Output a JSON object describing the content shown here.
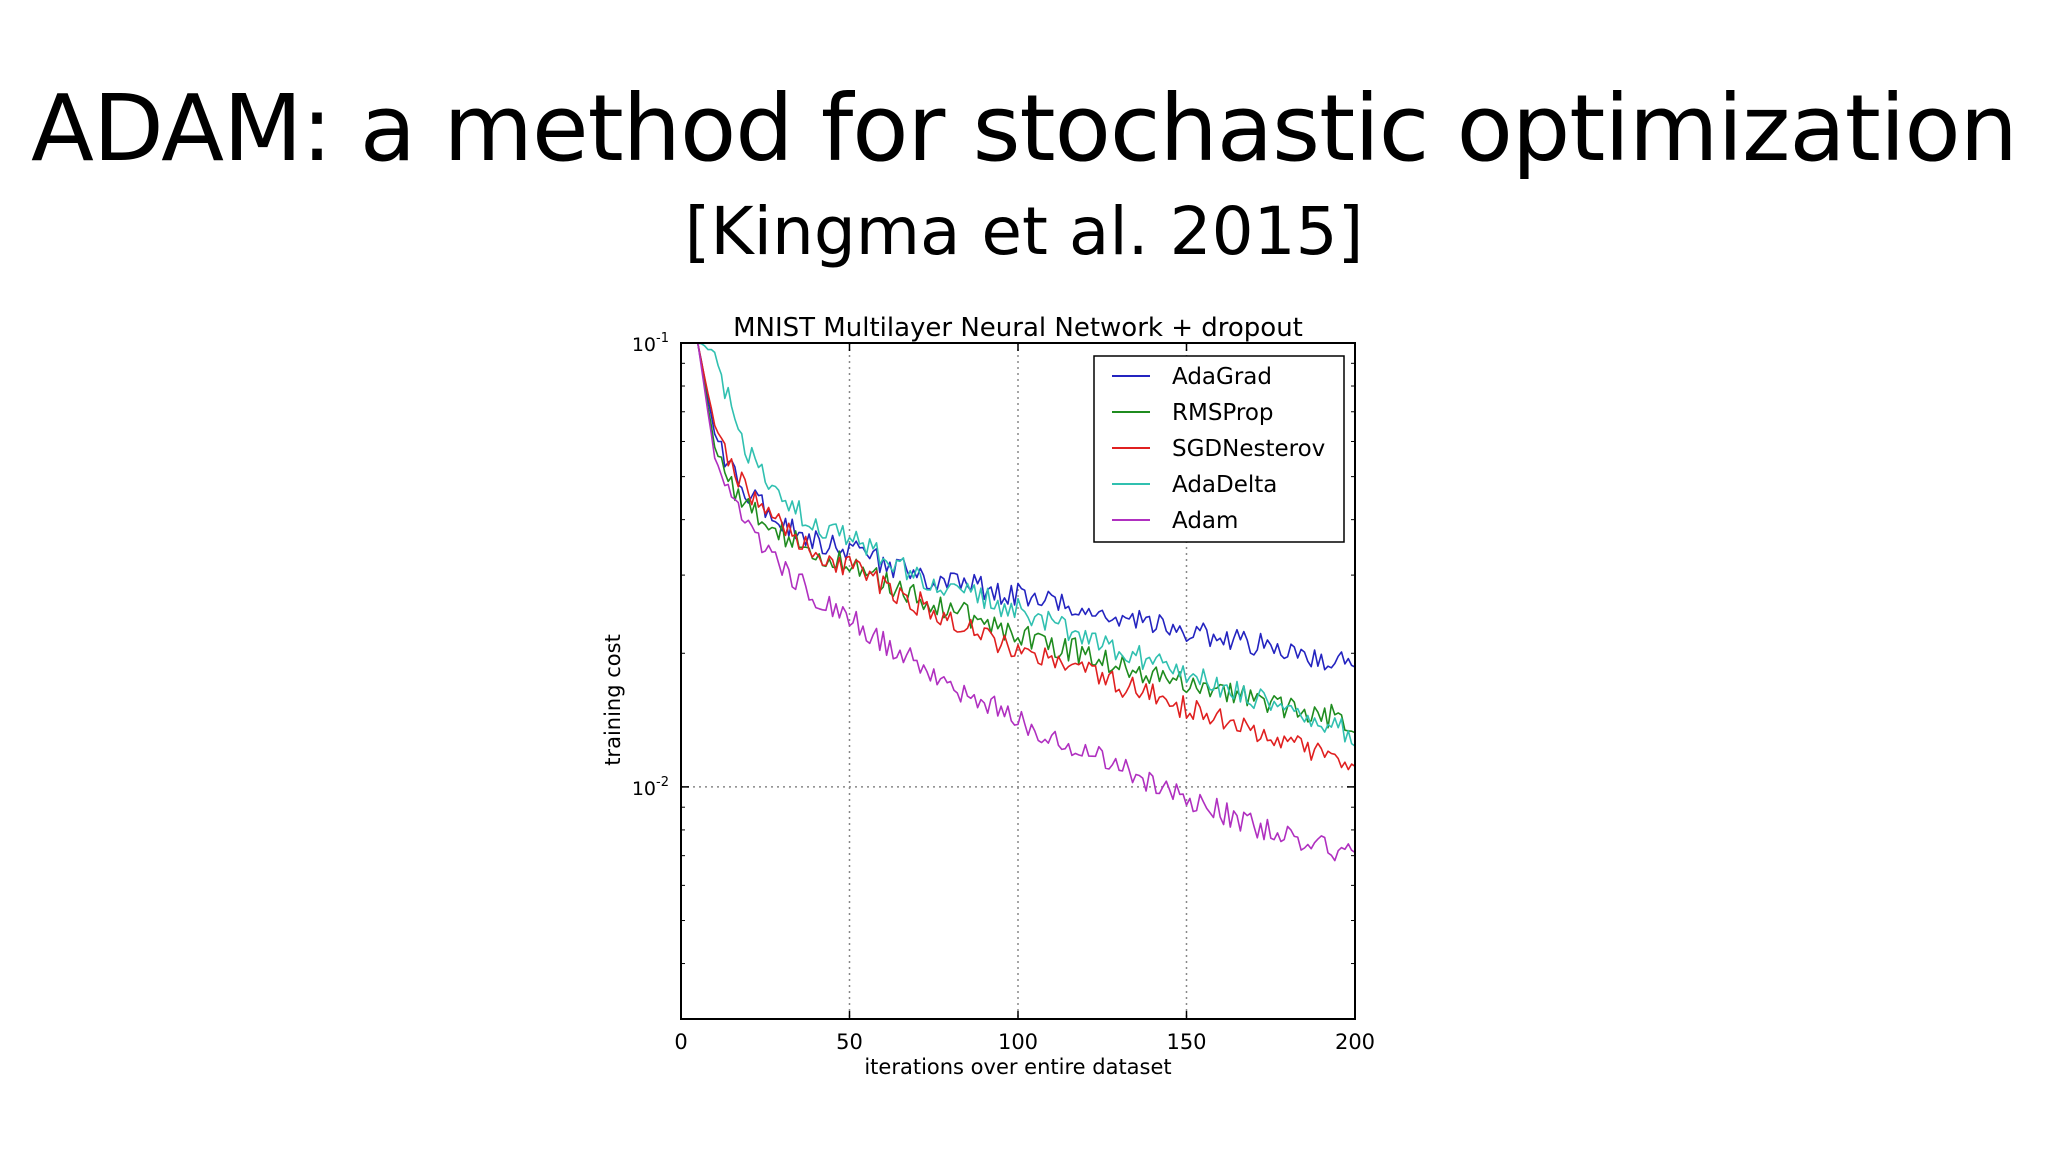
{
  "slide": {
    "title": "ADAM: a method for stochastic optimization",
    "subtitle": "[Kingma et al. 2015]"
  },
  "chart_data": {
    "type": "line",
    "title": "MNIST Multilayer Neural Network + dropout",
    "xlabel": "iterations over entire dataset",
    "ylabel": "training cost",
    "xlim": [
      0,
      200
    ],
    "ylim": [
      0.003,
      0.1
    ],
    "yscale": "log",
    "x_ticks": [
      0,
      50,
      100,
      150,
      200
    ],
    "y_ticks": [
      {
        "value": 0.1,
        "base": "10",
        "exp": "-1"
      },
      {
        "value": 0.01,
        "base": "10",
        "exp": "-2"
      }
    ],
    "grid": true,
    "legend_position": "top-right",
    "series": [
      {
        "name": "AdaGrad",
        "color": "#2424c0",
        "points": [
          [
            5,
            0.1
          ],
          [
            10,
            0.062
          ],
          [
            15,
            0.052
          ],
          [
            20,
            0.046
          ],
          [
            25,
            0.042
          ],
          [
            30,
            0.039
          ],
          [
            40,
            0.036
          ],
          [
            50,
            0.034
          ],
          [
            60,
            0.032
          ],
          [
            70,
            0.03
          ],
          [
            80,
            0.029
          ],
          [
            90,
            0.028
          ],
          [
            100,
            0.027
          ],
          [
            110,
            0.026
          ],
          [
            120,
            0.025
          ],
          [
            130,
            0.024
          ],
          [
            140,
            0.0232
          ],
          [
            150,
            0.0225
          ],
          [
            160,
            0.0215
          ],
          [
            170,
            0.021
          ],
          [
            180,
            0.02
          ],
          [
            190,
            0.0195
          ],
          [
            200,
            0.0185
          ]
        ]
      },
      {
        "name": "RMSProp",
        "color": "#1f8c1f",
        "points": [
          [
            5,
            0.1
          ],
          [
            10,
            0.058
          ],
          [
            15,
            0.048
          ],
          [
            20,
            0.043
          ],
          [
            25,
            0.04
          ],
          [
            30,
            0.037
          ],
          [
            40,
            0.034
          ],
          [
            50,
            0.031
          ],
          [
            60,
            0.029
          ],
          [
            70,
            0.027
          ],
          [
            80,
            0.025
          ],
          [
            90,
            0.0235
          ],
          [
            100,
            0.0222
          ],
          [
            110,
            0.021
          ],
          [
            120,
            0.02
          ],
          [
            130,
            0.019
          ],
          [
            140,
            0.018
          ],
          [
            150,
            0.0172
          ],
          [
            160,
            0.0165
          ],
          [
            170,
            0.0158
          ],
          [
            180,
            0.0152
          ],
          [
            190,
            0.0146
          ],
          [
            200,
            0.014
          ]
        ]
      },
      {
        "name": "SGDNesterov",
        "color": "#e02020",
        "points": [
          [
            5,
            0.1
          ],
          [
            10,
            0.065
          ],
          [
            15,
            0.053
          ],
          [
            20,
            0.046
          ],
          [
            25,
            0.042
          ],
          [
            30,
            0.038
          ],
          [
            40,
            0.034
          ],
          [
            50,
            0.031
          ],
          [
            60,
            0.0285
          ],
          [
            70,
            0.026
          ],
          [
            80,
            0.024
          ],
          [
            90,
            0.022
          ],
          [
            100,
            0.0205
          ],
          [
            110,
            0.0193
          ],
          [
            120,
            0.018
          ],
          [
            130,
            0.017
          ],
          [
            140,
            0.016
          ],
          [
            150,
            0.015
          ],
          [
            160,
            0.0142
          ],
          [
            170,
            0.0133
          ],
          [
            180,
            0.0125
          ],
          [
            190,
            0.0118
          ],
          [
            200,
            0.011
          ]
        ]
      },
      {
        "name": "AdaDelta",
        "color": "#30c0b0",
        "points": [
          [
            5,
            0.1
          ],
          [
            10,
            0.095
          ],
          [
            15,
            0.07
          ],
          [
            20,
            0.056
          ],
          [
            25,
            0.049
          ],
          [
            30,
            0.044
          ],
          [
            40,
            0.039
          ],
          [
            50,
            0.036
          ],
          [
            60,
            0.033
          ],
          [
            70,
            0.03
          ],
          [
            80,
            0.028
          ],
          [
            90,
            0.0265
          ],
          [
            100,
            0.025
          ],
          [
            110,
            0.0236
          ],
          [
            120,
            0.022
          ],
          [
            130,
            0.0205
          ],
          [
            140,
            0.0192
          ],
          [
            150,
            0.018
          ],
          [
            160,
            0.0168
          ],
          [
            170,
            0.0158
          ],
          [
            180,
            0.0148
          ],
          [
            190,
            0.014
          ],
          [
            200,
            0.013
          ]
        ]
      },
      {
        "name": "Adam",
        "color": "#b030c0",
        "points": [
          [
            5,
            0.1
          ],
          [
            10,
            0.055
          ],
          [
            15,
            0.044
          ],
          [
            20,
            0.038
          ],
          [
            25,
            0.034
          ],
          [
            30,
            0.031
          ],
          [
            40,
            0.027
          ],
          [
            50,
            0.024
          ],
          [
            60,
            0.021
          ],
          [
            70,
            0.019
          ],
          [
            80,
            0.017
          ],
          [
            90,
            0.0155
          ],
          [
            100,
            0.0142
          ],
          [
            110,
            0.013
          ],
          [
            120,
            0.012
          ],
          [
            130,
            0.011
          ],
          [
            140,
            0.0102
          ],
          [
            150,
            0.0095
          ],
          [
            160,
            0.0088
          ],
          [
            170,
            0.0082
          ],
          [
            180,
            0.0078
          ],
          [
            190,
            0.0074
          ],
          [
            200,
            0.007
          ]
        ]
      }
    ]
  }
}
